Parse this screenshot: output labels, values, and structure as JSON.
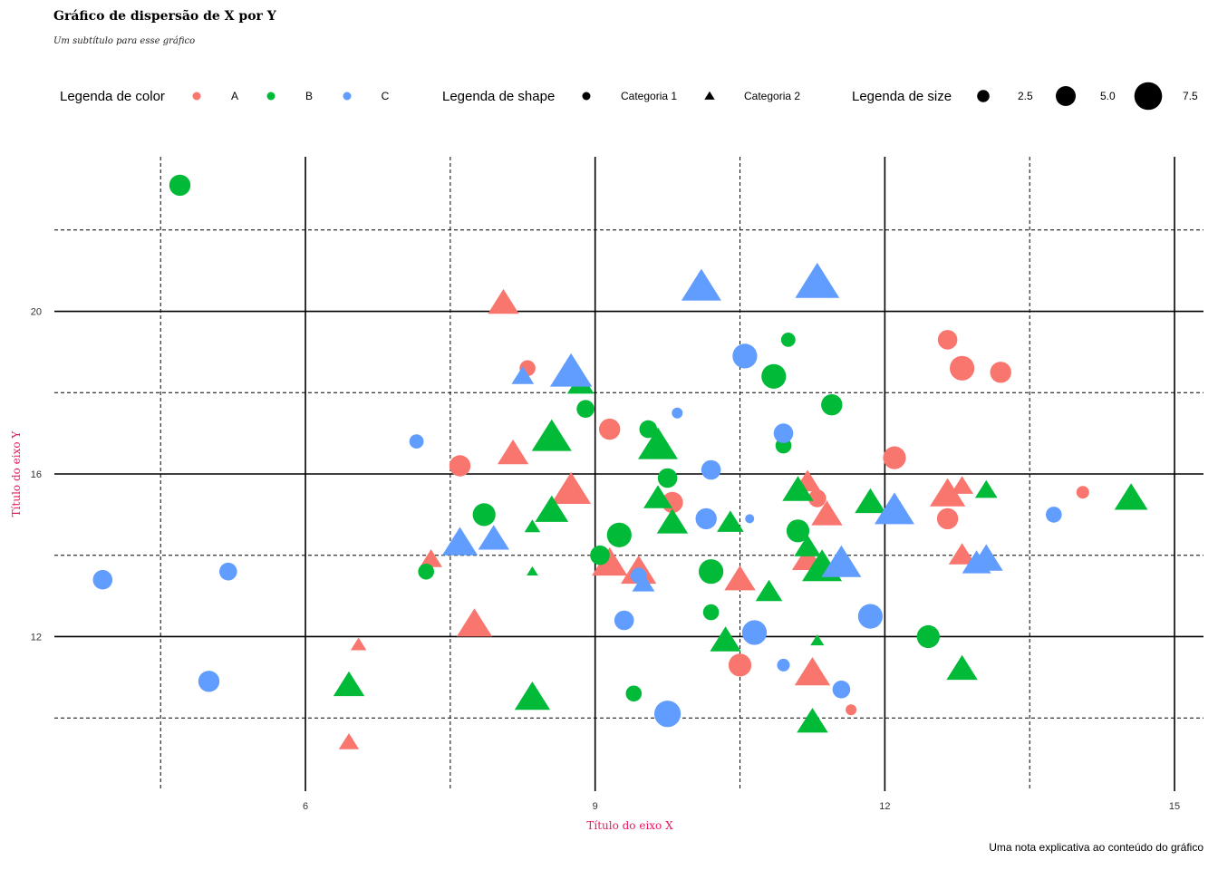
{
  "chart_data": {
    "type": "scatter",
    "title": "Gráfico de dispersão de X por Y",
    "subtitle": "Um subtítulo para esse gráfico",
    "caption": "Uma nota explicativa ao conteúdo do gráfico",
    "xlabel": "Título do eixo X",
    "ylabel": "Título do eixo Y",
    "xlim": [
      3.4,
      15.3
    ],
    "ylim": [
      8.2,
      23.8
    ],
    "x_ticks": [
      6,
      9,
      12,
      15
    ],
    "y_ticks": [
      12,
      16,
      20
    ],
    "x_minor": [
      4.5,
      7.5,
      10.5,
      13.5
    ],
    "y_minor": [
      10,
      14,
      18,
      22
    ],
    "grid": true,
    "colors": {
      "A": "#F8766D",
      "B": "#00BA38",
      "C": "#619CFF",
      "accent_axis": "#e8175d"
    },
    "legend": {
      "position": "top",
      "color": {
        "title": "Legenda de color",
        "items": [
          "A",
          "B",
          "C"
        ]
      },
      "shape": {
        "title": "Legenda de shape",
        "items": [
          {
            "label": "Categoria 1",
            "shape": "circle"
          },
          {
            "label": "Categoria 2",
            "shape": "triangle"
          }
        ]
      },
      "size": {
        "title": "Legenda de size",
        "items": [
          {
            "label": "2.5",
            "value": 2.5
          },
          {
            "label": "5.0",
            "value": 5.0
          },
          {
            "label": "7.5",
            "value": 7.5
          }
        ]
      }
    },
    "series": [
      {
        "name": "A",
        "color": "#F8766D",
        "points": [
          {
            "x": 8.05,
            "y": 20.2,
            "shape": "triangle",
            "size": 6
          },
          {
            "x": 8.3,
            "y": 18.6,
            "shape": "circle",
            "size": 3.5
          },
          {
            "x": 7.6,
            "y": 16.2,
            "shape": "circle",
            "size": 5
          },
          {
            "x": 8.15,
            "y": 16.5,
            "shape": "triangle",
            "size": 6
          },
          {
            "x": 8.75,
            "y": 15.6,
            "shape": "triangle",
            "size": 8
          },
          {
            "x": 9.15,
            "y": 17.1,
            "shape": "circle",
            "size": 5
          },
          {
            "x": 9.15,
            "y": 13.8,
            "shape": "triangle",
            "size": 7
          },
          {
            "x": 9.45,
            "y": 13.6,
            "shape": "triangle",
            "size": 7
          },
          {
            "x": 7.3,
            "y": 13.9,
            "shape": "triangle",
            "size": 4
          },
          {
            "x": 7.75,
            "y": 12.3,
            "shape": "triangle",
            "size": 7
          },
          {
            "x": 6.55,
            "y": 11.8,
            "shape": "triangle",
            "size": 2.5
          },
          {
            "x": 6.45,
            "y": 9.4,
            "shape": "triangle",
            "size": 3.5
          },
          {
            "x": 9.8,
            "y": 15.3,
            "shape": "circle",
            "size": 5
          },
          {
            "x": 10.5,
            "y": 11.3,
            "shape": "circle",
            "size": 5.5
          },
          {
            "x": 10.5,
            "y": 13.4,
            "shape": "triangle",
            "size": 6
          },
          {
            "x": 11.25,
            "y": 11.1,
            "shape": "triangle",
            "size": 7
          },
          {
            "x": 11.65,
            "y": 10.2,
            "shape": "circle",
            "size": 2
          },
          {
            "x": 11.2,
            "y": 15.8,
            "shape": "triangle",
            "size": 5
          },
          {
            "x": 11.3,
            "y": 15.4,
            "shape": "circle",
            "size": 4
          },
          {
            "x": 11.4,
            "y": 15.0,
            "shape": "triangle",
            "size": 6
          },
          {
            "x": 11.2,
            "y": 13.9,
            "shape": "triangle",
            "size": 6
          },
          {
            "x": 12.1,
            "y": 16.4,
            "shape": "circle",
            "size": 5.5
          },
          {
            "x": 12.65,
            "y": 19.3,
            "shape": "circle",
            "size": 4.5
          },
          {
            "x": 12.8,
            "y": 18.6,
            "shape": "circle",
            "size": 6
          },
          {
            "x": 13.2,
            "y": 18.5,
            "shape": "circle",
            "size": 5
          },
          {
            "x": 12.65,
            "y": 15.5,
            "shape": "triangle",
            "size": 7
          },
          {
            "x": 12.65,
            "y": 14.9,
            "shape": "circle",
            "size": 5
          },
          {
            "x": 12.8,
            "y": 15.7,
            "shape": "triangle",
            "size": 4
          },
          {
            "x": 12.8,
            "y": 14.0,
            "shape": "triangle",
            "size": 5
          },
          {
            "x": 14.05,
            "y": 15.55,
            "shape": "circle",
            "size": 2.5
          }
        ]
      },
      {
        "name": "B",
        "color": "#00BA38",
        "points": [
          {
            "x": 4.7,
            "y": 23.1,
            "shape": "circle",
            "size": 5
          },
          {
            "x": 7.25,
            "y": 13.6,
            "shape": "circle",
            "size": 3.5
          },
          {
            "x": 7.85,
            "y": 15.0,
            "shape": "circle",
            "size": 5.5
          },
          {
            "x": 6.45,
            "y": 10.8,
            "shape": "triangle",
            "size": 6
          },
          {
            "x": 8.35,
            "y": 14.7,
            "shape": "triangle",
            "size": 2.5
          },
          {
            "x": 8.35,
            "y": 13.6,
            "shape": "triangle",
            "size": 1.5
          },
          {
            "x": 8.55,
            "y": 15.1,
            "shape": "triangle",
            "size": 6.5
          },
          {
            "x": 8.55,
            "y": 16.9,
            "shape": "triangle",
            "size": 8
          },
          {
            "x": 8.35,
            "y": 10.5,
            "shape": "triangle",
            "size": 7
          },
          {
            "x": 8.85,
            "y": 18.2,
            "shape": "triangle",
            "size": 5
          },
          {
            "x": 8.9,
            "y": 17.6,
            "shape": "circle",
            "size": 4
          },
          {
            "x": 9.05,
            "y": 14.0,
            "shape": "circle",
            "size": 4.5
          },
          {
            "x": 9.25,
            "y": 14.5,
            "shape": "circle",
            "size": 6
          },
          {
            "x": 9.4,
            "y": 10.6,
            "shape": "circle",
            "size": 3.5
          },
          {
            "x": 9.55,
            "y": 17.1,
            "shape": "circle",
            "size": 4
          },
          {
            "x": 9.65,
            "y": 16.7,
            "shape": "triangle",
            "size": 8
          },
          {
            "x": 9.65,
            "y": 15.4,
            "shape": "triangle",
            "size": 5.5
          },
          {
            "x": 9.75,
            "y": 15.9,
            "shape": "circle",
            "size": 4.5
          },
          {
            "x": 9.8,
            "y": 14.8,
            "shape": "triangle",
            "size": 6
          },
          {
            "x": 10.2,
            "y": 13.6,
            "shape": "circle",
            "size": 6
          },
          {
            "x": 10.2,
            "y": 12.6,
            "shape": "circle",
            "size": 3.5
          },
          {
            "x": 10.35,
            "y": 11.9,
            "shape": "triangle",
            "size": 6
          },
          {
            "x": 10.4,
            "y": 14.8,
            "shape": "triangle",
            "size": 5
          },
          {
            "x": 10.85,
            "y": 18.4,
            "shape": "circle",
            "size": 6
          },
          {
            "x": 10.95,
            "y": 16.7,
            "shape": "circle",
            "size": 3.5
          },
          {
            "x": 11.0,
            "y": 19.3,
            "shape": "circle",
            "size": 3
          },
          {
            "x": 10.8,
            "y": 13.1,
            "shape": "triangle",
            "size": 5
          },
          {
            "x": 11.1,
            "y": 15.6,
            "shape": "triangle",
            "size": 6
          },
          {
            "x": 11.1,
            "y": 14.6,
            "shape": "circle",
            "size": 5.5
          },
          {
            "x": 11.2,
            "y": 14.2,
            "shape": "triangle",
            "size": 5
          },
          {
            "x": 11.35,
            "y": 13.7,
            "shape": "triangle",
            "size": 8
          },
          {
            "x": 11.3,
            "y": 11.9,
            "shape": "triangle",
            "size": 2
          },
          {
            "x": 11.45,
            "y": 17.7,
            "shape": "circle",
            "size": 5
          },
          {
            "x": 11.25,
            "y": 9.9,
            "shape": "triangle",
            "size": 6
          },
          {
            "x": 11.85,
            "y": 15.3,
            "shape": "triangle",
            "size": 6
          },
          {
            "x": 12.45,
            "y": 12.0,
            "shape": "circle",
            "size": 5.5
          },
          {
            "x": 12.8,
            "y": 11.2,
            "shape": "triangle",
            "size": 6
          },
          {
            "x": 13.05,
            "y": 15.6,
            "shape": "triangle",
            "size": 4
          },
          {
            "x": 14.55,
            "y": 15.4,
            "shape": "triangle",
            "size": 6.5
          }
        ]
      },
      {
        "name": "C",
        "color": "#619CFF",
        "points": [
          {
            "x": 3.9,
            "y": 13.4,
            "shape": "circle",
            "size": 4.5
          },
          {
            "x": 5.2,
            "y": 13.6,
            "shape": "circle",
            "size": 4
          },
          {
            "x": 5.0,
            "y": 10.9,
            "shape": "circle",
            "size": 5
          },
          {
            "x": 7.15,
            "y": 16.8,
            "shape": "circle",
            "size": 3
          },
          {
            "x": 7.6,
            "y": 14.3,
            "shape": "triangle",
            "size": 7
          },
          {
            "x": 7.95,
            "y": 14.4,
            "shape": "triangle",
            "size": 6
          },
          {
            "x": 8.25,
            "y": 18.4,
            "shape": "triangle",
            "size": 4
          },
          {
            "x": 8.75,
            "y": 18.5,
            "shape": "triangle",
            "size": 8.5
          },
          {
            "x": 9.3,
            "y": 12.4,
            "shape": "circle",
            "size": 4.5
          },
          {
            "x": 9.45,
            "y": 13.5,
            "shape": "circle",
            "size": 3.5
          },
          {
            "x": 9.5,
            "y": 13.3,
            "shape": "triangle",
            "size": 4
          },
          {
            "x": 9.75,
            "y": 10.1,
            "shape": "circle",
            "size": 6.5
          },
          {
            "x": 9.85,
            "y": 17.5,
            "shape": "circle",
            "size": 2
          },
          {
            "x": 10.15,
            "y": 14.9,
            "shape": "circle",
            "size": 5
          },
          {
            "x": 10.2,
            "y": 16.1,
            "shape": "circle",
            "size": 4.5
          },
          {
            "x": 10.1,
            "y": 20.6,
            "shape": "triangle",
            "size": 8
          },
          {
            "x": 10.55,
            "y": 18.9,
            "shape": "circle",
            "size": 6
          },
          {
            "x": 10.6,
            "y": 14.9,
            "shape": "circle",
            "size": 1.5
          },
          {
            "x": 10.65,
            "y": 12.1,
            "shape": "circle",
            "size": 6
          },
          {
            "x": 10.95,
            "y": 17.0,
            "shape": "circle",
            "size": 4.5
          },
          {
            "x": 10.95,
            "y": 11.3,
            "shape": "circle",
            "size": 2.5
          },
          {
            "x": 11.3,
            "y": 20.7,
            "shape": "triangle",
            "size": 9
          },
          {
            "x": 11.55,
            "y": 13.8,
            "shape": "triangle",
            "size": 8
          },
          {
            "x": 11.55,
            "y": 10.7,
            "shape": "circle",
            "size": 4
          },
          {
            "x": 11.85,
            "y": 12.5,
            "shape": "circle",
            "size": 6
          },
          {
            "x": 12.1,
            "y": 15.1,
            "shape": "triangle",
            "size": 8
          },
          {
            "x": 12.95,
            "y": 13.8,
            "shape": "triangle",
            "size": 5.5
          },
          {
            "x": 13.05,
            "y": 13.9,
            "shape": "triangle",
            "size": 6.5
          },
          {
            "x": 13.75,
            "y": 15.0,
            "shape": "circle",
            "size": 3.5
          }
        ]
      }
    ]
  }
}
